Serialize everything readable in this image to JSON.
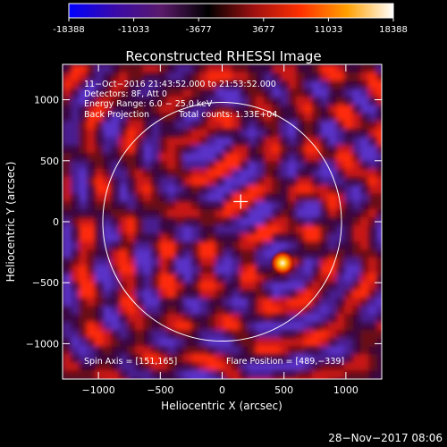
{
  "colorbar": {
    "ticks": [
      "-18388",
      "-11033",
      "-3677",
      "3677",
      "11033",
      "18388"
    ],
    "colors": [
      "#0000ff",
      "#3a0aa8",
      "#5a1a6a",
      "#000000",
      "#a01010",
      "#ff3000",
      "#ffa000",
      "#ffffff"
    ]
  },
  "chart_data": {
    "type": "heatmap",
    "title": "Reconstructed RHESSI Image",
    "xlabel": "Heliocentric X (arcsec)",
    "ylabel": "Heliocentric Y (arcsec)",
    "xlim": [
      -1290,
      1290
    ],
    "ylim": [
      -1290,
      1290
    ],
    "xticks": [
      -1000,
      -500,
      0,
      500,
      1000
    ],
    "yticks": [
      -1000,
      -500,
      0,
      500,
      1000
    ],
    "xtick_labels": [
      "−1000",
      "−500",
      "0",
      "500",
      "1000"
    ],
    "ytick_labels": [
      "1000",
      "500",
      "0",
      "−500",
      "−1000"
    ],
    "value_range": [
      -18388,
      18388
    ],
    "solar_limb_radius_arcsec": 965,
    "sun_center_marker": [
      150,
      165
    ],
    "flare_peak": {
      "x": 489,
      "y": -339
    },
    "annotations": [
      "11−Oct−2016 21:43:52.000 to 21:53:52.000",
      "Detectors: 8F, Att 0",
      "Energy Range: 6.0 − 25.0 keV",
      "Back Projection",
      "Total counts: 1.33E+04",
      "Spin Axis = [151,165]",
      "Flare Position = [489,−339]"
    ]
  },
  "footer": {
    "date": "28−Nov−2017 08:06"
  }
}
